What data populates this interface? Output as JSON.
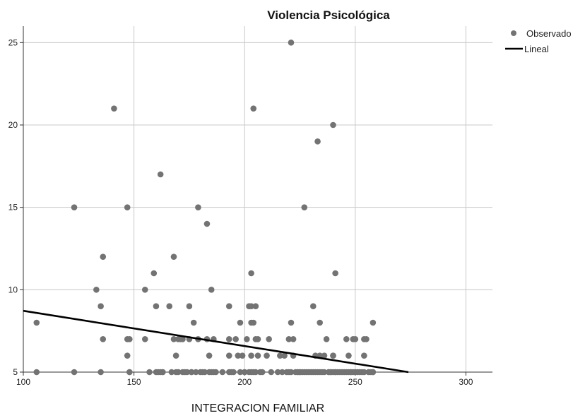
{
  "chart_data": {
    "type": "scatter",
    "title": "Violencia Psicológica",
    "xlabel": "INTEGRACION FAMILIAR",
    "ylabel": "",
    "xlim": [
      100,
      312
    ],
    "ylim": [
      5,
      26
    ],
    "xticks": [
      100,
      150,
      200,
      250,
      300
    ],
    "yticks": [
      5,
      10,
      15,
      20,
      25
    ],
    "grid": true,
    "legend_position": "top-right",
    "colors": {
      "points": "#737373",
      "line": "#000000",
      "grid": "#c8c8c8",
      "axis": "#333333"
    },
    "series": [
      {
        "name": "Observado",
        "kind": "points",
        "x": [
          106,
          106,
          123,
          123,
          133,
          135,
          135,
          136,
          136,
          141,
          147,
          147,
          147,
          148,
          148,
          148,
          155,
          155,
          157,
          159,
          160,
          160,
          161,
          162,
          162,
          163,
          163,
          166,
          167,
          168,
          168,
          169,
          169,
          170,
          170,
          171,
          172,
          172,
          173,
          174,
          175,
          175,
          176,
          176,
          177,
          178,
          179,
          179,
          180,
          181,
          182,
          183,
          183,
          184,
          184,
          185,
          185,
          186,
          186,
          187,
          190,
          193,
          193,
          193,
          193,
          194,
          195,
          196,
          197,
          198,
          198,
          199,
          200,
          200,
          201,
          202,
          202,
          203,
          203,
          203,
          203,
          203,
          204,
          204,
          204,
          205,
          205,
          205,
          206,
          206,
          207,
          208,
          210,
          211,
          212,
          215,
          216,
          217,
          218,
          219,
          220,
          220,
          221,
          221,
          221,
          222,
          222,
          223,
          224,
          224,
          225,
          225,
          226,
          227,
          227,
          228,
          229,
          230,
          231,
          231,
          232,
          232,
          233,
          233,
          234,
          234,
          234,
          235,
          236,
          236,
          237,
          238,
          238,
          239,
          239,
          240,
          240,
          240,
          240,
          241,
          241,
          241,
          242,
          243,
          244,
          245,
          246,
          246,
          247,
          247,
          248,
          248,
          249,
          249,
          250,
          250,
          251,
          252,
          253,
          254,
          254,
          254,
          255,
          256,
          257,
          258,
          258,
          258
        ],
        "y": [
          8,
          5,
          15,
          5,
          10,
          9,
          5,
          12,
          7,
          21,
          15,
          7,
          6,
          7,
          5,
          5,
          10,
          7,
          5,
          11,
          9,
          5,
          5,
          17,
          5,
          5,
          5,
          9,
          5,
          12,
          7,
          5,
          6,
          7,
          5,
          7,
          5,
          7,
          5,
          5,
          9,
          7,
          5,
          5,
          8,
          5,
          15,
          7,
          5,
          5,
          5,
          14,
          7,
          5,
          6,
          10,
          5,
          7,
          5,
          5,
          5,
          9,
          7,
          6,
          5,
          5,
          5,
          7,
          6,
          5,
          8,
          6,
          5,
          5,
          7,
          9,
          5,
          9,
          8,
          11,
          6,
          5,
          21,
          5,
          8,
          9,
          7,
          5,
          7,
          6,
          5,
          5,
          6,
          7,
          5,
          5,
          6,
          5,
          6,
          5,
          7,
          5,
          25,
          8,
          5,
          7,
          6,
          5,
          5,
          5,
          5,
          5,
          5,
          15,
          5,
          5,
          5,
          5,
          9,
          5,
          5,
          6,
          19,
          5,
          6,
          8,
          5,
          5,
          6,
          5,
          7,
          5,
          5,
          5,
          5,
          20,
          6,
          6,
          5,
          11,
          5,
          5,
          5,
          5,
          5,
          5,
          7,
          5,
          6,
          5,
          5,
          5,
          5,
          7,
          7,
          5,
          5,
          5,
          5,
          7,
          6,
          5,
          7,
          5,
          5,
          8,
          5,
          5
        ]
      },
      {
        "name": "Lineal",
        "kind": "line",
        "x": [
          100,
          274
        ],
        "y": [
          8.72,
          5
        ]
      }
    ]
  }
}
